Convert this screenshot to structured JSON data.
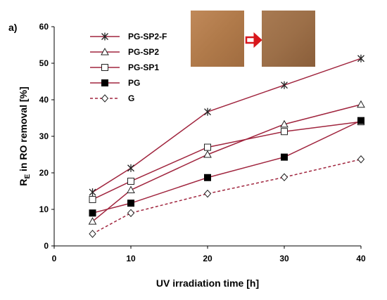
{
  "chart_data": {
    "type": "line",
    "panel_label": "a)",
    "xlabel": "UV irradiation time [h]",
    "ylabel_main": "R",
    "ylabel_sub": "E",
    "ylabel_rest": " in RO removal  [%]",
    "xlim": [
      0,
      40
    ],
    "ylim": [
      0,
      60
    ],
    "xticks": [
      0,
      10,
      20,
      30,
      40
    ],
    "yticks": [
      0,
      10,
      20,
      30,
      40,
      50,
      60
    ],
    "grid": false,
    "legend_position": "top-left",
    "x": [
      5,
      10,
      20,
      30,
      40
    ],
    "series": [
      {
        "name": "PG-SP2-F",
        "values": [
          14.7,
          21.3,
          36.7,
          44.0,
          51.3
        ],
        "color": "#a0253e",
        "marker": "asterisk",
        "dashed": false
      },
      {
        "name": "PG-SP2",
        "values": [
          6.7,
          15.3,
          25.0,
          33.3,
          38.7
        ],
        "color": "#a0253e",
        "marker": "triangle-open",
        "dashed": false
      },
      {
        "name": "PG-SP1",
        "values": [
          12.7,
          17.7,
          27.0,
          31.3,
          34.0
        ],
        "color": "#a0253e",
        "marker": "square-open",
        "dashed": false
      },
      {
        "name": "PG",
        "values": [
          9.0,
          11.7,
          18.7,
          24.3,
          34.3
        ],
        "color": "#a0253e",
        "marker": "square-filled",
        "dashed": false
      },
      {
        "name": "G",
        "values": [
          3.3,
          9.0,
          14.3,
          18.8,
          23.7
        ],
        "color": "#a0253e",
        "marker": "diamond-open",
        "dashed": true
      }
    ]
  },
  "inset": {
    "before_color": "#b07a4a",
    "after_color": "#9c6f48",
    "arrow_color": "#d8171c"
  }
}
